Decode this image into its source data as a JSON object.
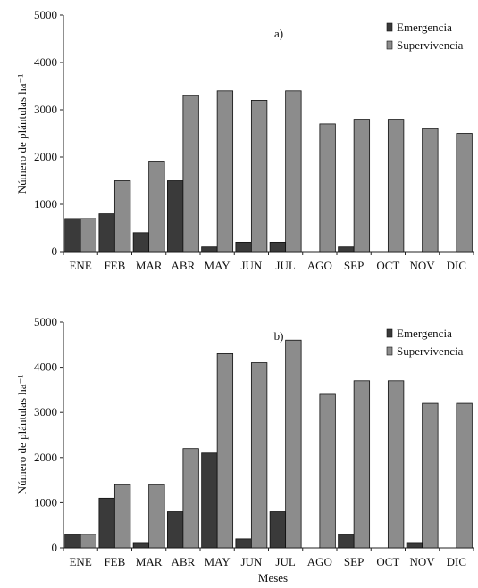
{
  "chart_data": [
    {
      "type": "bar",
      "panel_label": "a)",
      "categories": [
        "ENE",
        "FEB",
        "MAR",
        "ABR",
        "MAY",
        "JUN",
        "JUL",
        "AGO",
        "SEP",
        "OCT",
        "NOV",
        "DIC"
      ],
      "series": [
        {
          "name": "Emergencia",
          "color": "#3a3a3a",
          "values": [
            700,
            800,
            400,
            1500,
            100,
            200,
            200,
            0,
            100,
            0,
            0,
            0
          ]
        },
        {
          "name": "Supervivencia",
          "color": "#8c8c8c",
          "values": [
            700,
            1500,
            1900,
            3300,
            3400,
            3200,
            3400,
            2700,
            2800,
            2800,
            2600,
            2500
          ]
        }
      ],
      "ylabel": "Número de plántulas ha⁻¹",
      "xlabel": "",
      "ylim": [
        0,
        5000
      ],
      "yticks": [
        "0",
        "1000",
        "2000",
        "3000",
        "4000",
        "5000"
      ],
      "legend_position": "top-right"
    },
    {
      "type": "bar",
      "panel_label": "b)",
      "categories": [
        "ENE",
        "FEB",
        "MAR",
        "ABR",
        "MAY",
        "JUN",
        "JUL",
        "AGO",
        "SEP",
        "OCT",
        "NOV",
        "DIC"
      ],
      "series": [
        {
          "name": "Emergencia",
          "color": "#3a3a3a",
          "values": [
            300,
            1100,
            100,
            800,
            2100,
            200,
            800,
            0,
            300,
            0,
            100,
            0
          ]
        },
        {
          "name": "Supervivencia",
          "color": "#8c8c8c",
          "values": [
            300,
            1400,
            1400,
            2200,
            4300,
            4100,
            4600,
            3400,
            3700,
            3700,
            3200,
            3200
          ]
        }
      ],
      "ylabel": "Número de plántulas ha⁻¹",
      "xlabel": "Meses",
      "ylim": [
        0,
        5000
      ],
      "yticks": [
        "0",
        "1000",
        "2000",
        "3000",
        "4000",
        "5000"
      ],
      "legend_position": "top-right"
    }
  ]
}
